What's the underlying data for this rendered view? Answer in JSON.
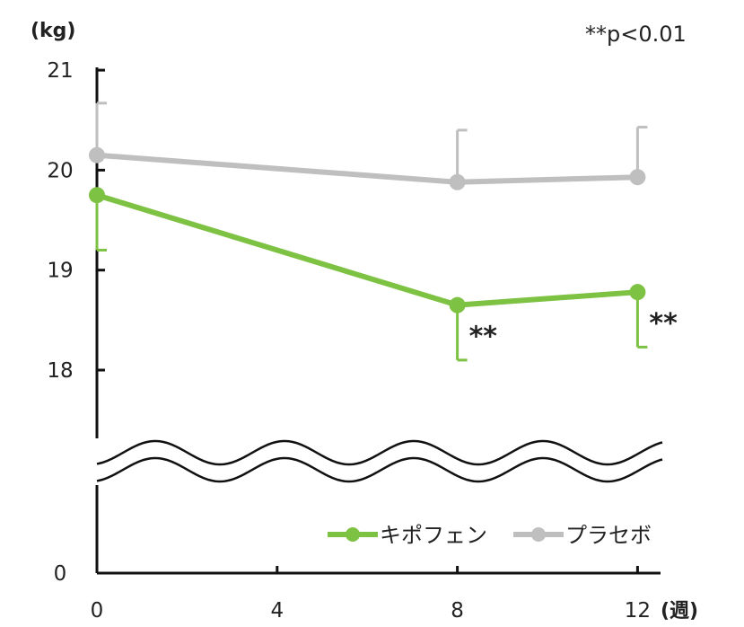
{
  "chart_data": {
    "type": "line",
    "y_unit_label": "(kg)",
    "significance_note": "**p<0.01",
    "x_axis_suffix": "(週)",
    "x_ticks": [
      "0",
      "4",
      "8",
      "12"
    ],
    "y_ticks": [
      "0",
      "18",
      "19",
      "20",
      "21"
    ],
    "y_axis_break": true,
    "x": [
      0,
      8,
      12
    ],
    "series": [
      {
        "name": "キポフェン",
        "color": "#7dc242",
        "values": [
          19.75,
          18.65,
          18.78
        ],
        "error_bar": "down",
        "error": [
          0.55,
          0.55,
          0.55
        ],
        "markers": [
          "",
          "**",
          "**"
        ]
      },
      {
        "name": "プラセボ",
        "color": "#bfbfbf",
        "values": [
          20.15,
          19.88,
          19.93
        ],
        "error_bar": "up",
        "error": [
          0.52,
          0.52,
          0.5
        ]
      }
    ],
    "legend_position": "bottom-right"
  }
}
